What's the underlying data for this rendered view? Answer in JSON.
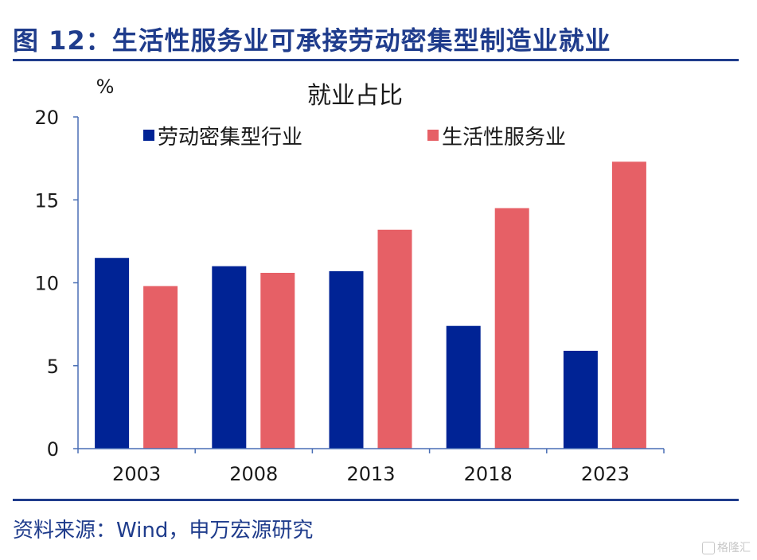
{
  "figure_title": "图 12：生活性服务业可承接劳动密集型制造业就业",
  "source": "资料来源：Wind，申万宏源研究",
  "watermark": "格隆汇",
  "colors": {
    "title": "#1f3c8c",
    "series_0": "#002395",
    "series_1": "#e66066",
    "axis": "#4a6fb5",
    "text": "#1a1a1a"
  },
  "chart_data": {
    "type": "bar",
    "title": "就业占比",
    "ylabel": "%",
    "xlabel": "",
    "categories": [
      "2003",
      "2008",
      "2013",
      "2018",
      "2023"
    ],
    "ylim": [
      0,
      20
    ],
    "yticks": [
      0,
      5,
      10,
      15,
      20
    ],
    "grid": false,
    "legend_position": "top",
    "series": [
      {
        "name": "劳动密集型行业",
        "values": [
          11.5,
          11.0,
          10.7,
          7.4,
          5.9
        ]
      },
      {
        "name": "生活性服务业",
        "values": [
          9.8,
          10.6,
          13.2,
          14.5,
          17.3
        ]
      }
    ]
  }
}
